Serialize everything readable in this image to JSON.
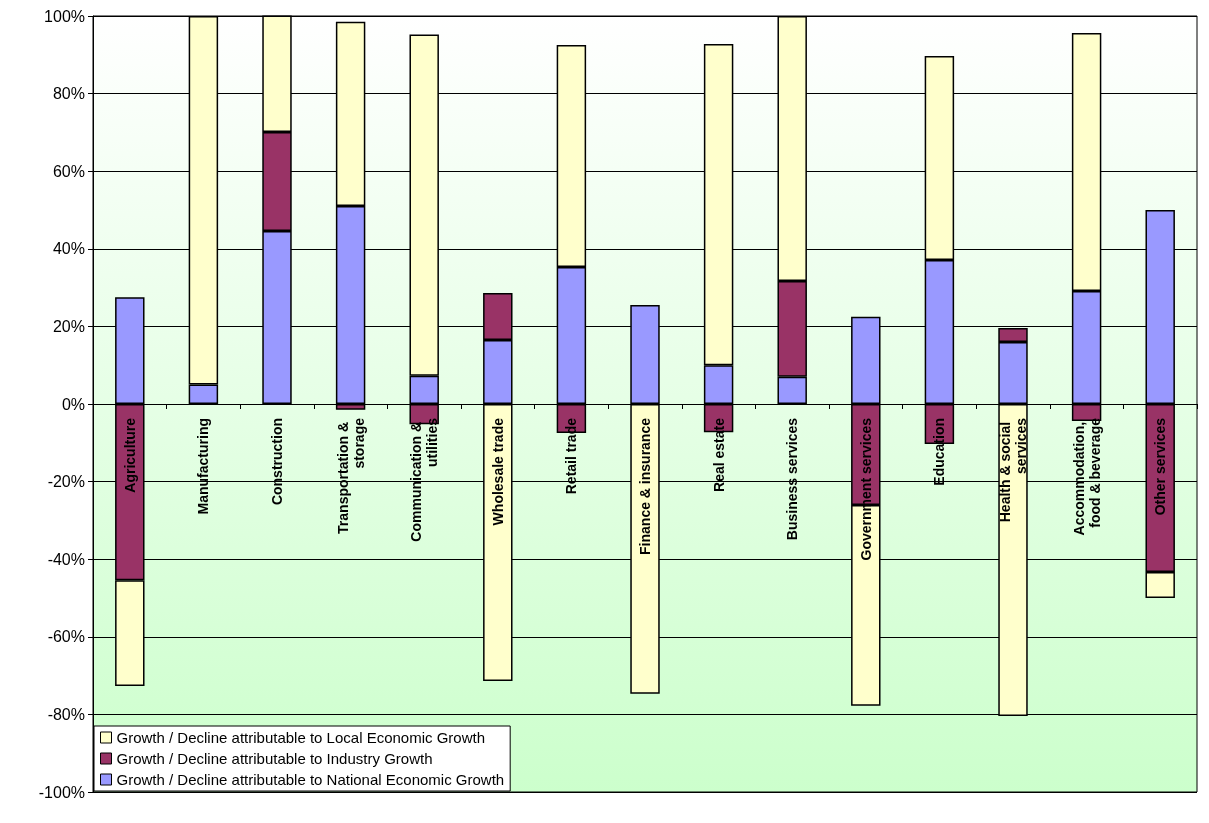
{
  "chart_data": {
    "type": "bar",
    "stacked": true,
    "categories": [
      "Agriculture",
      "Manufacturing",
      "Construction",
      "Transportation & storage",
      "Communication & utilities",
      "Wholesale trade",
      "Retail trade",
      "Finance & insurance",
      "Real estate",
      "Business services",
      "Government services",
      "Education",
      "Health & social services",
      "Accommodation, food & beverage",
      "Other services"
    ],
    "series": [
      {
        "name": "Growth / Decline attributable to National Economic Growth",
        "color": "#9999ff",
        "values": [
          27.5,
          5,
          44.6,
          51,
          7.3,
          16.5,
          35.3,
          25.5,
          10,
          7,
          22.5,
          37.1,
          16,
          29.1,
          50
        ]
      },
      {
        "name": "Growth / Decline attributable to Industry Growth",
        "color": "#993366",
        "values": [
          -45.4,
          null,
          25.5,
          -1.5,
          -5.2,
          12.1,
          -7.5,
          null,
          -7.3,
          24.7,
          -26,
          -10.3,
          3.6,
          -4.4,
          -43.3
        ]
      },
      {
        "name": "Growth / Decline attributable to Local Economic Growth",
        "color": "#ffffcc",
        "values": [
          -27.3,
          95,
          30,
          47.5,
          87.9,
          -71.4,
          57.2,
          -74.7,
          82.8,
          68.3,
          -51.8,
          52.6,
          -80.4,
          66.5,
          -6.7
        ]
      }
    ],
    "ylim": [
      -100,
      100
    ],
    "yticks": [
      {
        "value": -100,
        "label": "-100%"
      },
      {
        "value": -80,
        "label": "-80%"
      },
      {
        "value": -60,
        "label": "-60%"
      },
      {
        "value": -40,
        "label": "-40%"
      },
      {
        "value": -20,
        "label": "-20%"
      },
      {
        "value": 0,
        "label": "0%"
      },
      {
        "value": 20,
        "label": "20%"
      },
      {
        "value": 40,
        "label": "40%"
      },
      {
        "value": 60,
        "label": "60%"
      },
      {
        "value": 80,
        "label": "80%"
      },
      {
        "value": 100,
        "label": "100%"
      }
    ],
    "grid": "y",
    "legend": "bottom left"
  }
}
